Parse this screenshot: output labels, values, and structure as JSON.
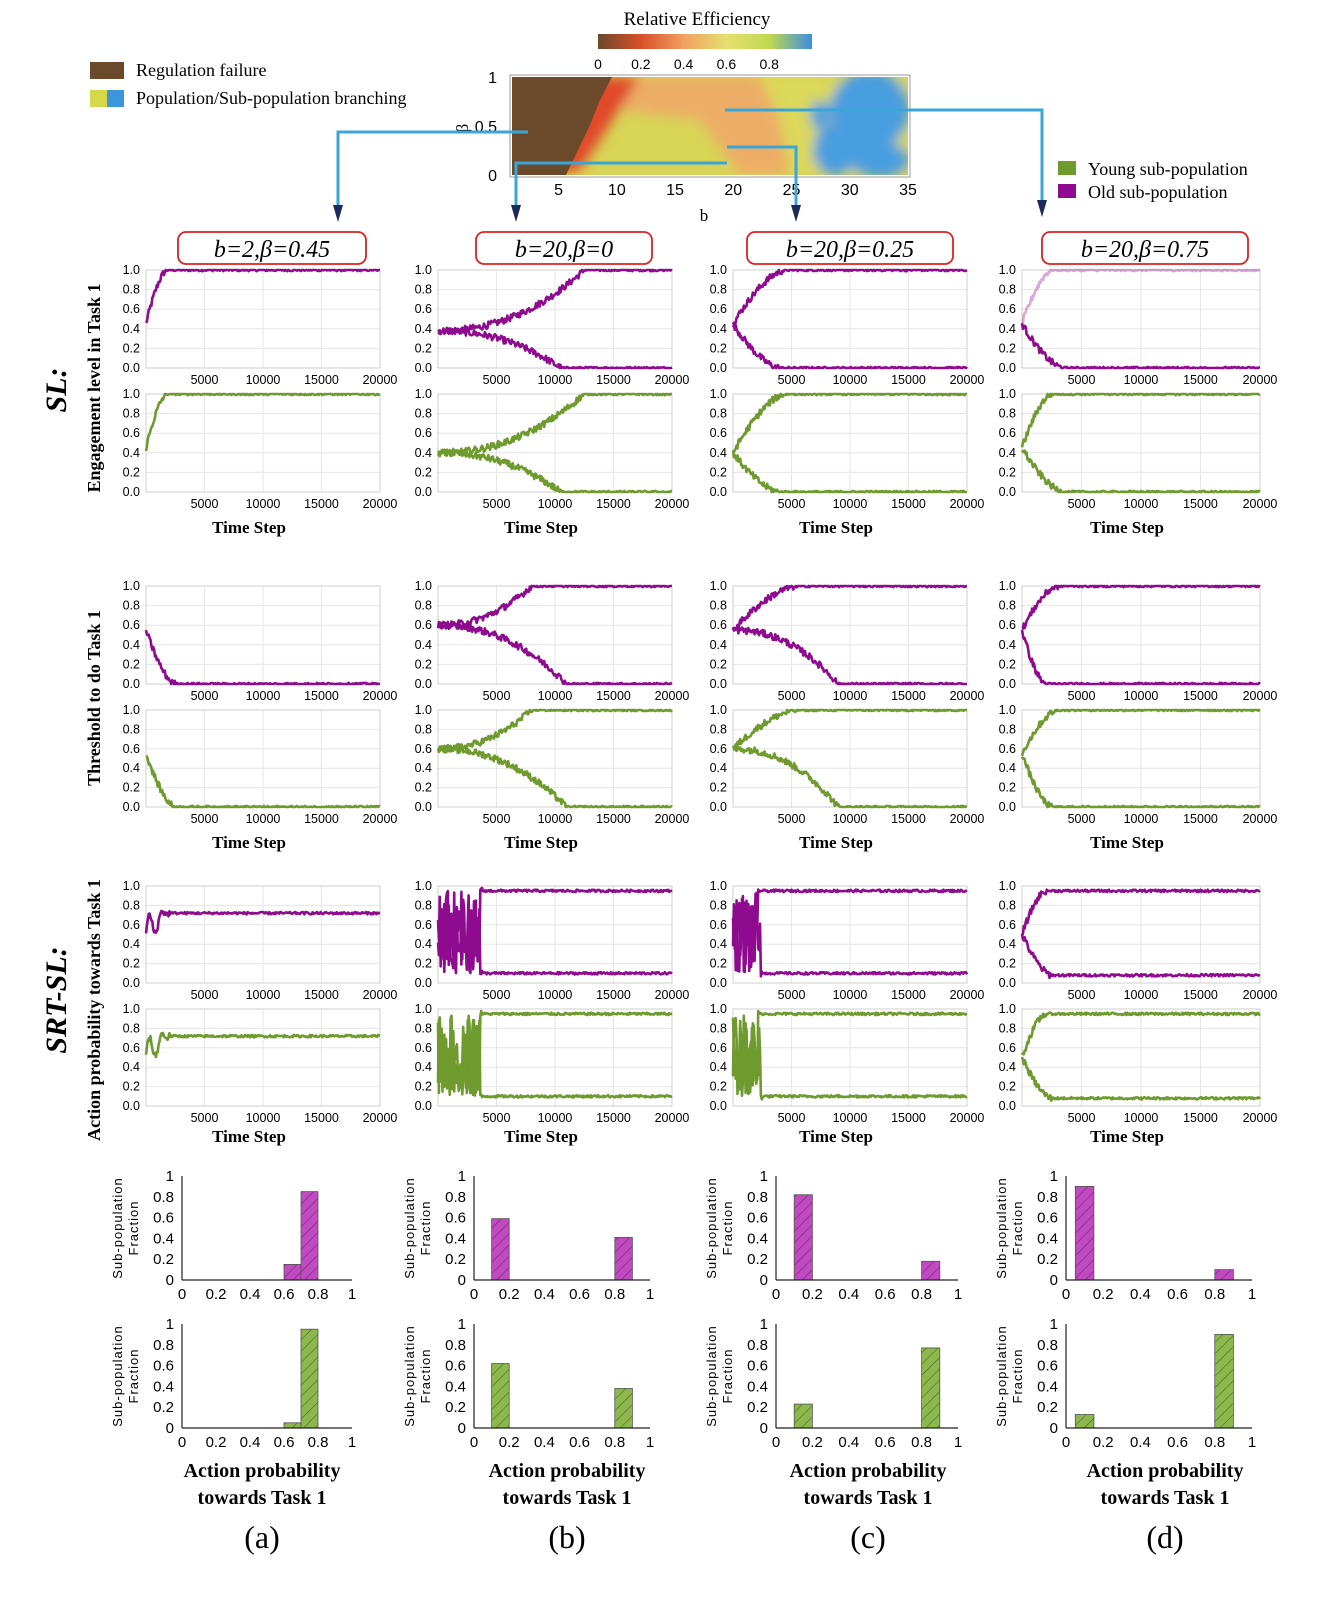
{
  "colors": {
    "old": "#8e0a8e",
    "young": "#6e9a2e",
    "old_hist": "#c04ac0",
    "young_hist": "#8cb84e",
    "regulation_failure": "#6b4a2b",
    "branch_yellow": "#d6d84a",
    "branch_blue": "#3c96dc",
    "connector": "#3aa6d8",
    "arrow": "#1a2a5a"
  },
  "legend_top_left": [
    {
      "label": "Regulation failure",
      "swatch": "regulation_failure"
    },
    {
      "label": "Population/Sub-population branching",
      "swatch": "branching"
    }
  ],
  "legend_right": [
    {
      "label": "Young sub-population",
      "color": "young"
    },
    {
      "label": "Old sub-population",
      "color": "old"
    }
  ],
  "heatmap": {
    "colorbar_title": "Relative Efficiency",
    "colorbar_ticks": [
      "0",
      "0.2",
      "0.4",
      "0.6",
      "0.8"
    ],
    "y_label": "β",
    "y_ticks": [
      "1",
      "0.5",
      "0"
    ],
    "x_label": "b",
    "x_ticks": [
      "5",
      "10",
      "15",
      "20",
      "25",
      "30",
      "35"
    ]
  },
  "columns": [
    {
      "title": "b=2,β=0.45",
      "letter": "(a)"
    },
    {
      "title": "b=20,β=0",
      "letter": "(b)"
    },
    {
      "title": "b=20,β=0.25",
      "letter": "(c)"
    },
    {
      "title": "b=20,β=0.75",
      "letter": "(d)"
    }
  ],
  "row_labels": {
    "SL": "SL:",
    "SRT_SL": "SRT-SL:",
    "engagement": "Engagement  level in Task 1",
    "threshold": "Threshold to do Task 1",
    "action": "Action probability towards Task 1"
  },
  "timeseries_axes": {
    "x_ticks": [
      "5000",
      "10000",
      "15000",
      "20000"
    ],
    "y_ticks": [
      "1.0",
      "0.8",
      "0.6",
      "0.4",
      "0.2",
      "0.0"
    ],
    "xlabel": "Time Step"
  },
  "hist_axes": {
    "ylabel_line1": "Sub-population",
    "ylabel_line2": "Fraction",
    "x_ticks": [
      "0",
      "0.2",
      "0.4",
      "0.6",
      "0.8",
      "1"
    ],
    "y_ticks": [
      "1",
      "0.8",
      "0.6",
      "0.4",
      "0.2",
      "0"
    ],
    "xlabel_line1": "Action probability",
    "xlabel_line2": "towards Task 1"
  },
  "chart_data": [
    {
      "type": "line",
      "panel": "engagement-a-old",
      "x_range": [
        0,
        20000
      ],
      "ylim": [
        0,
        1
      ],
      "branches": [
        {
          "start": 0.45,
          "end": 1.0,
          "t_end": 1800
        }
      ]
    },
    {
      "type": "line",
      "panel": "engagement-a-young",
      "x_range": [
        0,
        20000
      ],
      "ylim": [
        0,
        1
      ],
      "branches": [
        {
          "start": 0.45,
          "end": 1.0,
          "t_end": 1800
        }
      ]
    },
    {
      "type": "line",
      "panel": "engagement-b-old",
      "x_range": [
        0,
        20000
      ],
      "ylim": [
        0,
        1
      ],
      "branches": [
        {
          "start": 0.38,
          "end": 1.0,
          "t_end": 12500
        },
        {
          "start": 0.38,
          "end": 0.0,
          "t_end": 10500
        }
      ]
    },
    {
      "type": "line",
      "panel": "engagement-b-young",
      "x_range": [
        0,
        20000
      ],
      "ylim": [
        0,
        1
      ],
      "branches": [
        {
          "start": 0.4,
          "end": 1.0,
          "t_end": 12500
        },
        {
          "start": 0.4,
          "end": 0.0,
          "t_end": 10500
        }
      ]
    },
    {
      "type": "line",
      "panel": "engagement-c-old",
      "x_range": [
        0,
        20000
      ],
      "ylim": [
        0,
        1
      ],
      "branches": [
        {
          "start": 0.45,
          "end": 1.0,
          "t_end": 4500
        },
        {
          "start": 0.45,
          "end": 0.0,
          "t_end": 4000
        }
      ]
    },
    {
      "type": "line",
      "panel": "engagement-c-young",
      "x_range": [
        0,
        20000
      ],
      "ylim": [
        0,
        1
      ],
      "branches": [
        {
          "start": 0.4,
          "end": 1.0,
          "t_end": 4500
        },
        {
          "start": 0.4,
          "end": 0.0,
          "t_end": 4000
        }
      ]
    },
    {
      "type": "line",
      "panel": "engagement-d-old",
      "x_range": [
        0,
        20000
      ],
      "ylim": [
        0,
        1
      ],
      "branches": [
        {
          "start": 0.45,
          "end": 1.0,
          "t_end": 2500
        },
        {
          "start": 0.45,
          "end": 0.0,
          "t_end": 3500
        }
      ]
    },
    {
      "type": "line",
      "panel": "engagement-d-young",
      "x_range": [
        0,
        20000
      ],
      "ylim": [
        0,
        1
      ],
      "branches": [
        {
          "start": 0.45,
          "end": 1.0,
          "t_end": 2500
        },
        {
          "start": 0.45,
          "end": 0.0,
          "t_end": 3500
        }
      ]
    },
    {
      "type": "line",
      "panel": "threshold-a-old",
      "x_range": [
        0,
        20000
      ],
      "ylim": [
        0,
        1
      ],
      "branches": [
        {
          "start": 0.55,
          "end": 0.0,
          "t_end": 2500
        }
      ]
    },
    {
      "type": "line",
      "panel": "threshold-a-young",
      "x_range": [
        0,
        20000
      ],
      "ylim": [
        0,
        1
      ],
      "branches": [
        {
          "start": 0.55,
          "end": 0.0,
          "t_end": 2500
        }
      ]
    },
    {
      "type": "line",
      "panel": "threshold-b-old",
      "x_range": [
        0,
        20000
      ],
      "ylim": [
        0,
        1
      ],
      "branches": [
        {
          "start": 0.6,
          "end": 1.0,
          "t_end": 8000
        },
        {
          "start": 0.6,
          "end": 0.0,
          "t_end": 11000
        }
      ]
    },
    {
      "type": "line",
      "panel": "threshold-b-young",
      "x_range": [
        0,
        20000
      ],
      "ylim": [
        0,
        1
      ],
      "branches": [
        {
          "start": 0.6,
          "end": 1.0,
          "t_end": 8000
        },
        {
          "start": 0.6,
          "end": 0.0,
          "t_end": 11000
        }
      ]
    },
    {
      "type": "line",
      "panel": "threshold-c-old",
      "x_range": [
        0,
        20000
      ],
      "ylim": [
        0,
        1
      ],
      "branches": [
        {
          "start": 0.55,
          "end": 1.0,
          "t_end": 5500
        },
        {
          "start": 0.55,
          "end": 0.0,
          "t_end": 9000
        }
      ]
    },
    {
      "type": "line",
      "panel": "threshold-c-young",
      "x_range": [
        0,
        20000
      ],
      "ylim": [
        0,
        1
      ],
      "branches": [
        {
          "start": 0.6,
          "end": 1.0,
          "t_end": 5500
        },
        {
          "start": 0.6,
          "end": 0.0,
          "t_end": 9000
        }
      ]
    },
    {
      "type": "line",
      "panel": "threshold-d-old",
      "x_range": [
        0,
        20000
      ],
      "ylim": [
        0,
        1
      ],
      "branches": [
        {
          "start": 0.55,
          "end": 1.0,
          "t_end": 3000
        },
        {
          "start": 0.55,
          "end": 0.0,
          "t_end": 2000
        }
      ]
    },
    {
      "type": "line",
      "panel": "threshold-d-young",
      "x_range": [
        0,
        20000
      ],
      "ylim": [
        0,
        1
      ],
      "branches": [
        {
          "start": 0.55,
          "end": 1.0,
          "t_end": 3000
        },
        {
          "start": 0.55,
          "end": 0.0,
          "t_end": 2500
        }
      ]
    },
    {
      "type": "line",
      "panel": "action-a-old",
      "x_range": [
        0,
        20000
      ],
      "ylim": [
        0,
        1
      ],
      "branches": [
        {
          "start": 0.5,
          "end": 0.72,
          "t_end": 2000
        }
      ]
    },
    {
      "type": "line",
      "panel": "action-a-young",
      "x_range": [
        0,
        20000
      ],
      "ylim": [
        0,
        1
      ],
      "branches": [
        {
          "start": 0.5,
          "end": 0.72,
          "t_end": 2000
        }
      ]
    },
    {
      "type": "line",
      "panel": "action-b-old",
      "x_range": [
        0,
        20000
      ],
      "ylim": [
        0,
        1
      ],
      "branches": [
        {
          "start": 0.5,
          "end": 0.95,
          "t_end": 3800
        },
        {
          "start": 0.5,
          "end": 0.1,
          "t_end": 3800
        }
      ]
    },
    {
      "type": "line",
      "panel": "action-b-young",
      "x_range": [
        0,
        20000
      ],
      "ylim": [
        0,
        1
      ],
      "branches": [
        {
          "start": 0.5,
          "end": 0.95,
          "t_end": 3800
        },
        {
          "start": 0.5,
          "end": 0.1,
          "t_end": 3800
        }
      ]
    },
    {
      "type": "line",
      "panel": "action-c-old",
      "x_range": [
        0,
        20000
      ],
      "ylim": [
        0,
        1
      ],
      "branches": [
        {
          "start": 0.5,
          "end": 0.95,
          "t_end": 2200
        },
        {
          "start": 0.5,
          "end": 0.1,
          "t_end": 2500
        }
      ]
    },
    {
      "type": "line",
      "panel": "action-c-young",
      "x_range": [
        0,
        20000
      ],
      "ylim": [
        0,
        1
      ],
      "branches": [
        {
          "start": 0.5,
          "end": 0.95,
          "t_end": 2200
        },
        {
          "start": 0.5,
          "end": 0.1,
          "t_end": 2500
        }
      ]
    },
    {
      "type": "line",
      "panel": "action-d-old",
      "x_range": [
        0,
        20000
      ],
      "ylim": [
        0,
        1
      ],
      "branches": [
        {
          "start": 0.5,
          "end": 0.95,
          "t_end": 2000
        },
        {
          "start": 0.5,
          "end": 0.08,
          "t_end": 2500
        }
      ]
    },
    {
      "type": "line",
      "panel": "action-d-young",
      "x_range": [
        0,
        20000
      ],
      "ylim": [
        0,
        1
      ],
      "branches": [
        {
          "start": 0.5,
          "end": 0.95,
          "t_end": 2000
        },
        {
          "start": 0.5,
          "end": 0.08,
          "t_end": 2500
        }
      ]
    },
    {
      "type": "bar",
      "panel": "hist-a-old",
      "xlim": [
        0,
        1
      ],
      "ylim": [
        0,
        1
      ],
      "bins": [
        {
          "left": 0.6,
          "right": 0.7,
          "value": 0.15
        },
        {
          "left": 0.7,
          "right": 0.8,
          "value": 0.85
        }
      ]
    },
    {
      "type": "bar",
      "panel": "hist-a-young",
      "xlim": [
        0,
        1
      ],
      "ylim": [
        0,
        1
      ],
      "bins": [
        {
          "left": 0.6,
          "right": 0.7,
          "value": 0.05
        },
        {
          "left": 0.7,
          "right": 0.8,
          "value": 0.95
        }
      ]
    },
    {
      "type": "bar",
      "panel": "hist-b-old",
      "xlim": [
        0,
        1
      ],
      "ylim": [
        0,
        1
      ],
      "bins": [
        {
          "left": 0.1,
          "right": 0.2,
          "value": 0.59
        },
        {
          "left": 0.8,
          "right": 0.9,
          "value": 0.41
        }
      ]
    },
    {
      "type": "bar",
      "panel": "hist-b-young",
      "xlim": [
        0,
        1
      ],
      "ylim": [
        0,
        1
      ],
      "bins": [
        {
          "left": 0.1,
          "right": 0.2,
          "value": 0.62
        },
        {
          "left": 0.8,
          "right": 0.9,
          "value": 0.38
        }
      ]
    },
    {
      "type": "bar",
      "panel": "hist-c-old",
      "xlim": [
        0,
        1
      ],
      "ylim": [
        0,
        1
      ],
      "bins": [
        {
          "left": 0.1,
          "right": 0.2,
          "value": 0.82
        },
        {
          "left": 0.8,
          "right": 0.9,
          "value": 0.18
        }
      ]
    },
    {
      "type": "bar",
      "panel": "hist-c-young",
      "xlim": [
        0,
        1
      ],
      "ylim": [
        0,
        1
      ],
      "bins": [
        {
          "left": 0.1,
          "right": 0.2,
          "value": 0.23
        },
        {
          "left": 0.8,
          "right": 0.9,
          "value": 0.77
        }
      ]
    },
    {
      "type": "bar",
      "panel": "hist-d-old",
      "xlim": [
        0,
        1
      ],
      "ylim": [
        0,
        1
      ],
      "bins": [
        {
          "left": 0.05,
          "right": 0.15,
          "value": 0.9
        },
        {
          "left": 0.8,
          "right": 0.9,
          "value": 0.1
        }
      ]
    },
    {
      "type": "bar",
      "panel": "hist-d-young",
      "xlim": [
        0,
        1
      ],
      "ylim": [
        0,
        1
      ],
      "bins": [
        {
          "left": 0.05,
          "right": 0.15,
          "value": 0.13
        },
        {
          "left": 0.8,
          "right": 0.9,
          "value": 0.9
        }
      ]
    }
  ]
}
